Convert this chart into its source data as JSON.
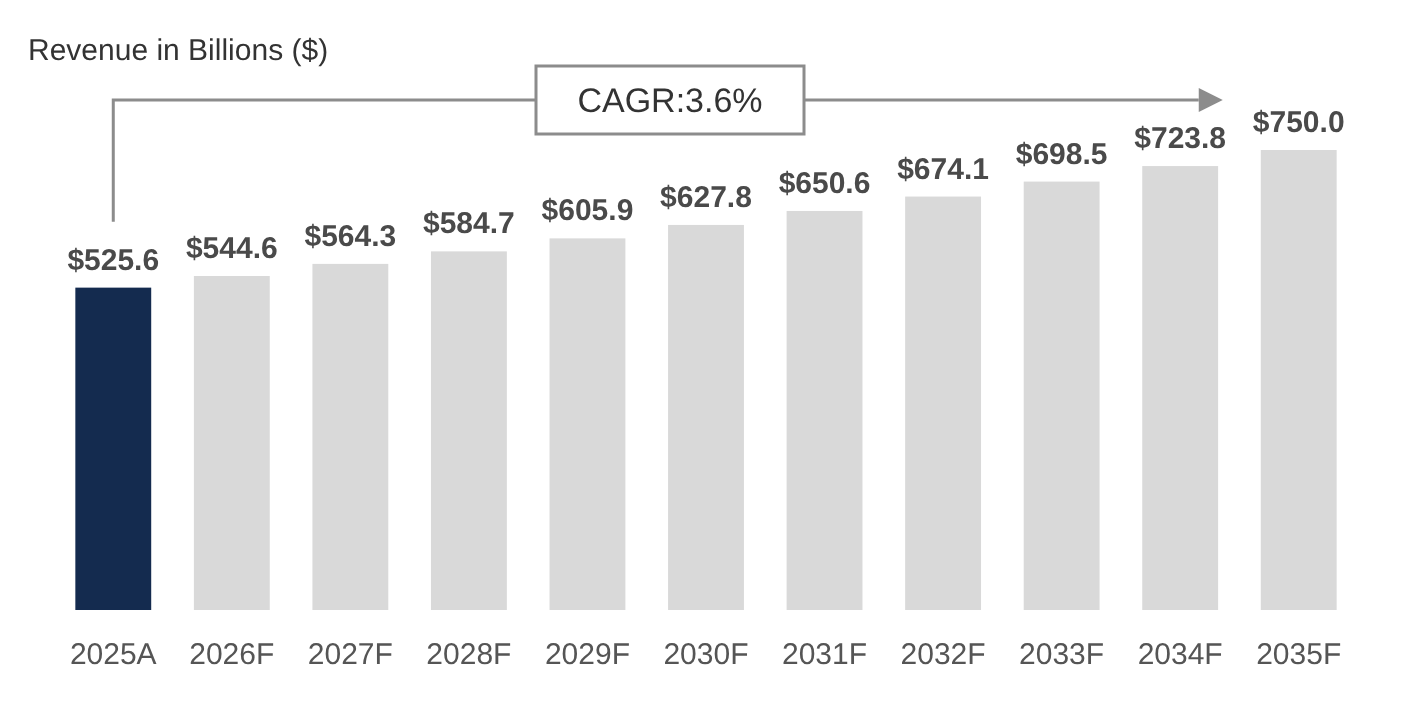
{
  "chart_data": {
    "type": "bar",
    "categories": [
      "2025A",
      "2026F",
      "2027F",
      "2028F",
      "2029F",
      "2030F",
      "2031F",
      "2032F",
      "2033F",
      "2034F",
      "2035F"
    ],
    "values": [
      525.6,
      544.6,
      564.3,
      584.7,
      605.9,
      627.8,
      650.6,
      674.1,
      698.5,
      723.8,
      750.0
    ],
    "colors": [
      "#142b4f",
      "#d9d9d9",
      "#d9d9d9",
      "#d9d9d9",
      "#d9d9d9",
      "#d9d9d9",
      "#d9d9d9",
      "#d9d9d9",
      "#d9d9d9",
      "#d9d9d9",
      "#d9d9d9"
    ],
    "value_labels": [
      "$525.6",
      "$544.6",
      "$564.3",
      "$584.7",
      "$605.9",
      "$627.8",
      "$650.6",
      "$674.1",
      "$698.5",
      "$723.8",
      "$750.0"
    ],
    "tick_labels": "x",
    "annotations": [
      "Revenue in Billions ($)",
      "CAGR:3.6%"
    ]
  }
}
